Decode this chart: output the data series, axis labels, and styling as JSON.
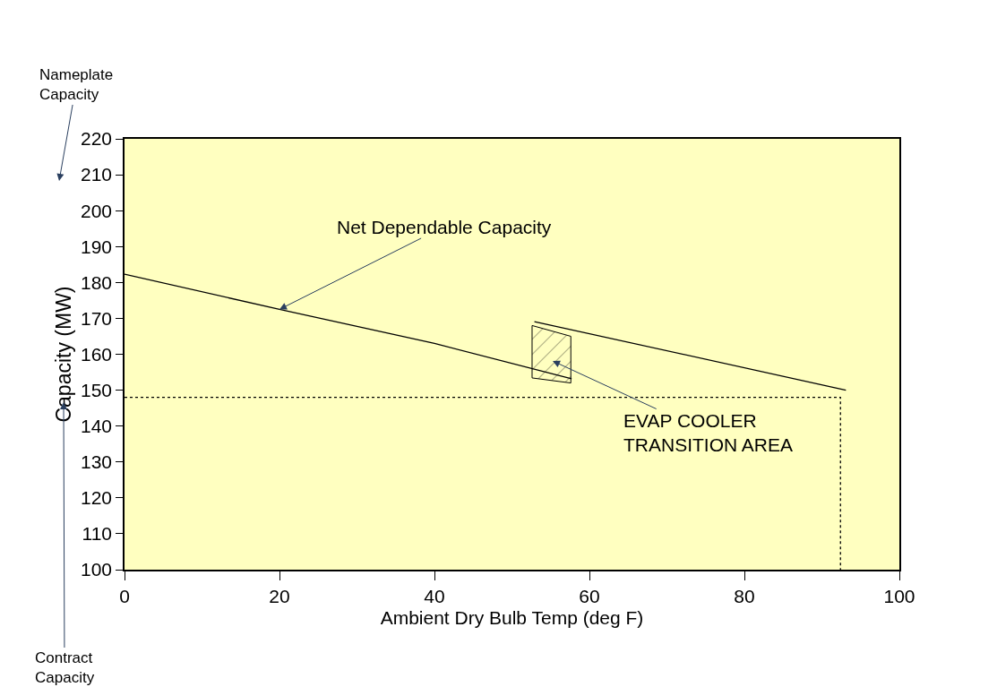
{
  "chart_data": {
    "type": "line",
    "xlabel": "Ambient Dry Bulb Temp (deg F)",
    "ylabel": "Capacity (MW)",
    "xlim": [
      0,
      100
    ],
    "xticks": [
      0,
      20,
      40,
      60,
      80,
      100
    ],
    "ylim": [
      100,
      220
    ],
    "yticks": [
      100,
      110,
      120,
      130,
      140,
      150,
      160,
      170,
      180,
      190,
      200,
      210,
      220
    ],
    "grid": false,
    "marker": "none",
    "series": [
      {
        "color": "#000000",
        "line_style": "solid",
        "x": [
          0,
          20,
          40,
          57.7
        ],
        "values": [
          182.3,
          172.5,
          163,
          153.2
        ]
      },
      {
        "color": "#000000",
        "line_style": "solid",
        "x": [
          52.9,
          93.1
        ],
        "values": [
          169.1,
          150.0
        ]
      },
      {
        "color": "#000000",
        "line_style": "dotted",
        "x": [
          0,
          92.4,
          92.4
        ],
        "values": [
          148,
          148,
          100
        ]
      },
      {
        "type": "area",
        "color": "#000000",
        "line_style": "solid",
        "x": [
          52.6,
          52.6,
          57.6,
          57.6,
          52.6
        ],
        "values": [
          168,
          153.4,
          152,
          165,
          168
        ]
      }
    ],
    "annotations": [
      "Nameplate Capacity",
      "Contract Capacity",
      {
        "text": "Net Dependable Capacity",
        "x": 20,
        "y": 172.5
      },
      "EVAP COOLER TRANSITION AREA"
    ]
  }
}
